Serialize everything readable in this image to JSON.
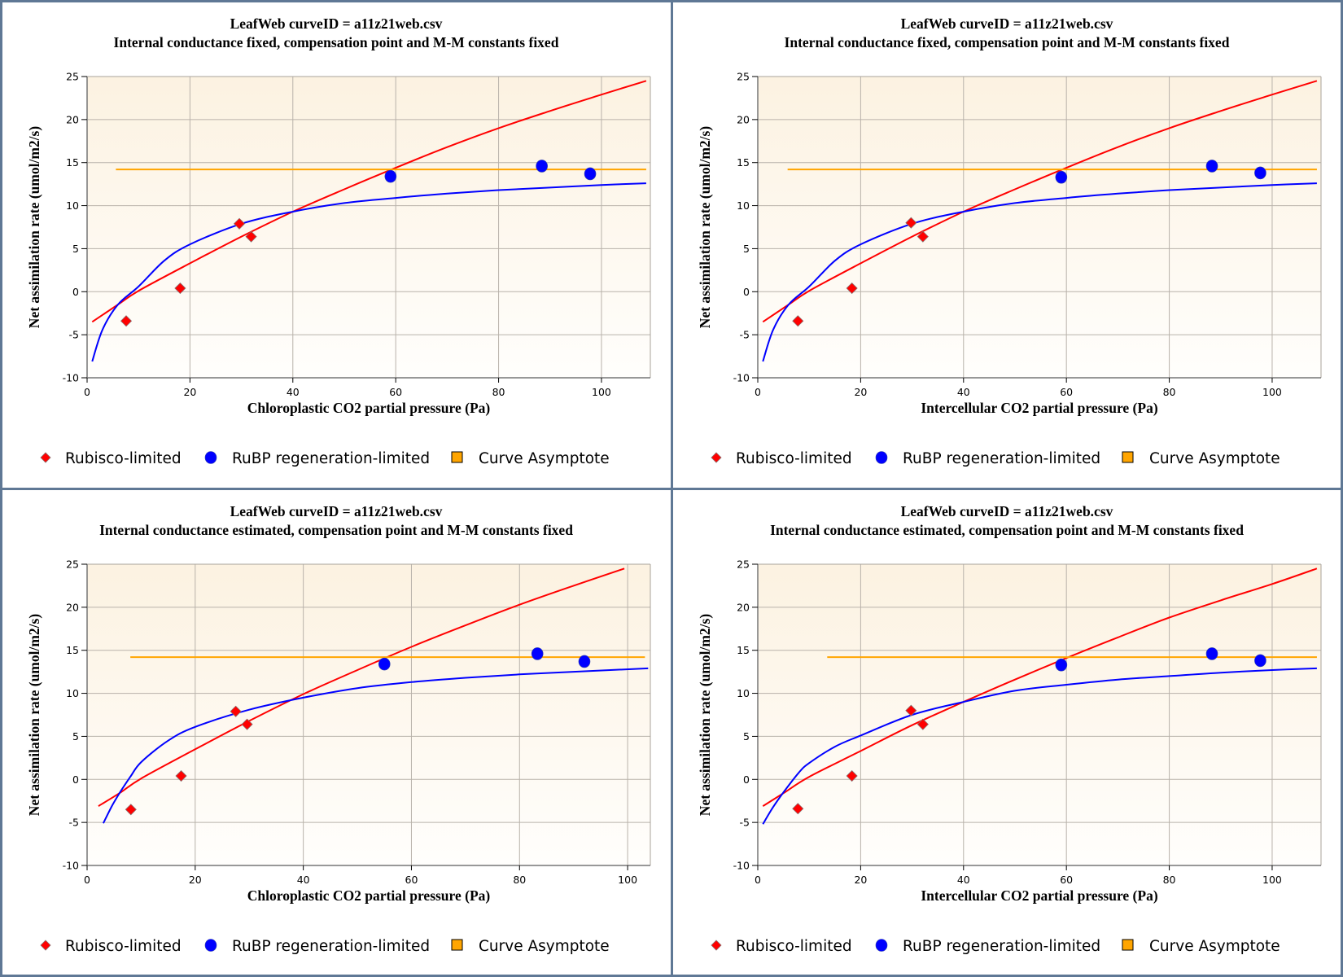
{
  "colors": {
    "rubisco": "#ff0000",
    "rubp": "#0000ff",
    "asymptote": "#ffa500",
    "border": "#5f7895",
    "plot_bg_top": "#fcf2e1",
    "plot_bg_bottom": "#fffefc",
    "grid": "#b8b2aa"
  },
  "legend": {
    "rubisco_label": "Rubisco-limited",
    "rubp_label": "RuBP regeneration-limited",
    "asymptote_label": "Curve Asymptote"
  },
  "chart_data": [
    {
      "type": "scatter",
      "title": "LeafWeb curveID = a11z21web.csv",
      "subtitle": "Internal conductance fixed, compensation point and M-M constants fixed",
      "xlabel": "Chloroplastic CO2 partial pressure (Pa)",
      "ylabel": "Net assimilation rate (umol/m2/s)",
      "xlim": [
        0,
        109.5
      ],
      "ylim": [
        -10,
        25
      ],
      "xticks": [
        0,
        20,
        40,
        60,
        80,
        100
      ],
      "yticks": [
        25,
        20,
        15,
        10,
        5,
        0,
        -5,
        -10
      ],
      "grid": true,
      "legend_position": "bottom",
      "series": [
        {
          "name": "Rubisco-limited",
          "kind": "points",
          "marker": "diamond",
          "x": [
            7.6,
            18.1,
            29.6,
            31.9
          ],
          "y": [
            -3.4,
            0.4,
            7.9,
            6.4
          ]
        },
        {
          "name": "RuBP regeneration-limited",
          "kind": "points",
          "marker": "circle",
          "x": [
            59.0,
            88.4,
            97.8
          ],
          "y": [
            13.4,
            14.6,
            13.7
          ]
        },
        {
          "name": "Rubisco-limited fit",
          "kind": "line",
          "x": [
            1,
            6,
            10,
            20,
            30,
            40,
            50,
            60,
            70,
            80,
            90,
            100,
            108.7
          ],
          "y": [
            -3.5,
            -1.5,
            0.1,
            3.3,
            6.4,
            9.3,
            11.9,
            14.4,
            16.8,
            19.0,
            21.0,
            22.9,
            24.5
          ]
        },
        {
          "name": "RuBP regeneration-limited fit",
          "kind": "line",
          "x": [
            1,
            3,
            6,
            10,
            15,
            20,
            30,
            40,
            50,
            60,
            70,
            80,
            90,
            100,
            108.7
          ],
          "y": [
            -8.1,
            -4.4,
            -1.5,
            0.6,
            3.6,
            5.5,
            7.9,
            9.3,
            10.3,
            10.9,
            11.4,
            11.8,
            12.1,
            12.4,
            12.6
          ]
        },
        {
          "name": "Curve Asymptote",
          "kind": "hline",
          "y": 14.2,
          "x": [
            5.6,
            108.7
          ]
        }
      ]
    },
    {
      "type": "scatter",
      "title": "LeafWeb curveID = a11z21web.csv",
      "subtitle": "Internal conductance fixed, compensation point and M-M constants fixed",
      "xlabel": "Intercellular CO2 partial pressure (Pa)",
      "ylabel": "Net assimilation rate (umol/m2/s)",
      "xlim": [
        0,
        109.5
      ],
      "ylim": [
        -10,
        25
      ],
      "xticks": [
        0,
        20,
        40,
        60,
        80,
        100
      ],
      "yticks": [
        25,
        20,
        15,
        10,
        5,
        0,
        -5,
        -10
      ],
      "grid": true,
      "legend_position": "bottom",
      "series": [
        {
          "name": "Rubisco-limited",
          "kind": "points",
          "marker": "diamond",
          "x": [
            7.8,
            18.3,
            29.8,
            32.1
          ],
          "y": [
            -3.4,
            0.4,
            8.0,
            6.4
          ]
        },
        {
          "name": "RuBP regeneration-limited",
          "kind": "points",
          "marker": "circle",
          "x": [
            59.0,
            88.3,
            97.7
          ],
          "y": [
            13.3,
            14.6,
            13.8
          ]
        },
        {
          "name": "Rubisco-limited fit",
          "kind": "line",
          "x": [
            1,
            6,
            10,
            20,
            30,
            40,
            50,
            60,
            70,
            80,
            90,
            100,
            108.7
          ],
          "y": [
            -3.5,
            -1.5,
            0.1,
            3.3,
            6.4,
            9.3,
            11.9,
            14.4,
            16.8,
            19.0,
            21.0,
            22.9,
            24.5
          ]
        },
        {
          "name": "RuBP regeneration-limited fit",
          "kind": "line",
          "x": [
            1,
            3,
            6,
            10,
            15,
            20,
            30,
            40,
            50,
            60,
            70,
            80,
            90,
            100,
            108.7
          ],
          "y": [
            -8.1,
            -4.4,
            -1.5,
            0.6,
            3.6,
            5.5,
            7.9,
            9.3,
            10.3,
            10.9,
            11.4,
            11.8,
            12.1,
            12.4,
            12.6
          ]
        },
        {
          "name": "Curve Asymptote",
          "kind": "hline",
          "y": 14.2,
          "x": [
            5.8,
            108.7
          ]
        }
      ]
    },
    {
      "type": "scatter",
      "title": "LeafWeb curveID = a11z21web.csv",
      "subtitle": "Internal conductance estimated, compensation point and M-M constants fixed",
      "xlabel": "Chloroplastic CO2 partial pressure (Pa)",
      "ylabel": "Net assimilation rate (umol/m2/s)",
      "xlim": [
        0,
        104.2
      ],
      "ylim": [
        -10,
        25
      ],
      "xticks": [
        0,
        20,
        40,
        60,
        80,
        100
      ],
      "yticks": [
        25,
        20,
        15,
        10,
        5,
        0,
        -5,
        -10
      ],
      "grid": true,
      "legend_position": "bottom",
      "series": [
        {
          "name": "Rubisco-limited",
          "kind": "points",
          "marker": "diamond",
          "x": [
            8.1,
            17.4,
            27.5,
            29.6
          ],
          "y": [
            -3.5,
            0.4,
            7.9,
            6.4
          ]
        },
        {
          "name": "RuBP regeneration-limited",
          "kind": "points",
          "marker": "circle",
          "x": [
            55.0,
            83.3,
            92.0
          ],
          "y": [
            13.4,
            14.6,
            13.7
          ]
        },
        {
          "name": "Rubisco-limited fit",
          "kind": "line",
          "x": [
            2.1,
            6,
            10,
            20,
            30,
            40,
            50,
            60,
            70,
            80,
            90,
            99.4
          ],
          "y": [
            -3.1,
            -1.6,
            0.1,
            3.5,
            6.8,
            9.9,
            12.7,
            15.4,
            17.9,
            20.3,
            22.5,
            24.5
          ]
        },
        {
          "name": "RuBP regeneration-limited fit",
          "kind": "line",
          "x": [
            3.0,
            4.5,
            6,
            8,
            10,
            15,
            20,
            30,
            40,
            50,
            60,
            70,
            80,
            90,
            103.8
          ],
          "y": [
            -5.1,
            -3.2,
            -1.6,
            0.3,
            2.0,
            4.5,
            6.1,
            8.1,
            9.5,
            10.6,
            11.3,
            11.8,
            12.2,
            12.5,
            12.9
          ]
        },
        {
          "name": "Curve Asymptote",
          "kind": "hline",
          "y": 14.2,
          "x": [
            8.0,
            103.2
          ]
        }
      ]
    },
    {
      "type": "scatter",
      "title": "LeafWeb curveID = a11z21web.csv",
      "subtitle": "Internal conductance estimated, compensation point and M-M constants fixed",
      "xlabel": "Intercellular CO2 partial pressure (Pa)",
      "ylabel": "Net assimilation rate (umol/m2/s)",
      "xlim": [
        0,
        109.5
      ],
      "ylim": [
        -10,
        25
      ],
      "xticks": [
        0,
        20,
        40,
        60,
        80,
        100
      ],
      "yticks": [
        25,
        20,
        15,
        10,
        5,
        0,
        -5,
        -10
      ],
      "grid": true,
      "legend_position": "bottom",
      "series": [
        {
          "name": "Rubisco-limited",
          "kind": "points",
          "marker": "diamond",
          "x": [
            7.8,
            18.3,
            29.8,
            32.1
          ],
          "y": [
            -3.4,
            0.4,
            8.0,
            6.4
          ]
        },
        {
          "name": "RuBP regeneration-limited",
          "kind": "points",
          "marker": "circle",
          "x": [
            59.0,
            88.3,
            97.7
          ],
          "y": [
            13.3,
            14.6,
            13.8
          ]
        },
        {
          "name": "Rubisco-limited fit",
          "kind": "line",
          "x": [
            1,
            5,
            10,
            20,
            30,
            40,
            50,
            60,
            70,
            80,
            90,
            100,
            108.7
          ],
          "y": [
            -3.1,
            -1.6,
            0.3,
            3.3,
            6.3,
            9.0,
            11.6,
            14.1,
            16.5,
            18.8,
            20.8,
            22.7,
            24.5
          ]
        },
        {
          "name": "RuBP regeneration-limited fit",
          "kind": "line",
          "x": [
            1,
            3,
            5,
            8,
            10,
            15,
            20,
            30,
            40,
            50,
            60,
            70,
            80,
            90,
            100,
            108.7
          ],
          "y": [
            -5.2,
            -3.2,
            -1.5,
            0.8,
            1.9,
            3.8,
            5.1,
            7.5,
            9.0,
            10.3,
            11.0,
            11.6,
            12.0,
            12.4,
            12.7,
            12.9
          ]
        },
        {
          "name": "Curve Asymptote",
          "kind": "hline",
          "y": 14.2,
          "x": [
            13.5,
            108.7
          ]
        }
      ]
    }
  ]
}
